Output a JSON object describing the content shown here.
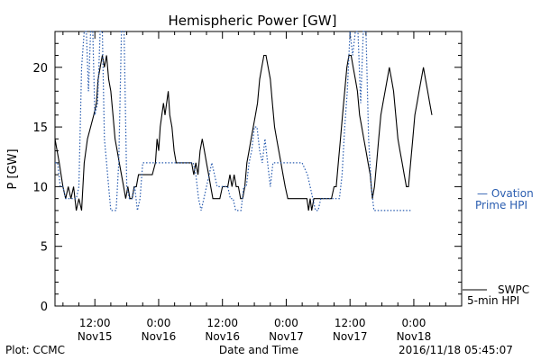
{
  "chart_data": {
    "type": "line",
    "title": "Hemispheric Power [GW]",
    "ylabel": "P [GW]",
    "xlabel": "Date and Time",
    "ylim": [
      0,
      23
    ],
    "yticks": [
      0,
      5,
      10,
      15,
      20
    ],
    "x_unit": "hours since 2016-11-15 00:00",
    "xlim": [
      4.5,
      81
    ],
    "xticks": [
      {
        "x": 12,
        "top": "12:00",
        "bottom": "Nov15"
      },
      {
        "x": 24,
        "top": "0:00",
        "bottom": "Nov16"
      },
      {
        "x": 36,
        "top": "12:00",
        "bottom": "Nov16"
      },
      {
        "x": 48,
        "top": "0:00",
        "bottom": "Nov17"
      },
      {
        "x": 60,
        "top": "12:00",
        "bottom": "Nov17"
      },
      {
        "x": 72,
        "top": "0:00",
        "bottom": "Nov18"
      }
    ],
    "series": [
      {
        "name": "SWPC 5-min HPI",
        "color": "#000000",
        "style": "solid",
        "points": [
          [
            4.5,
            14
          ],
          [
            5.3,
            12
          ],
          [
            6.0,
            10
          ],
          [
            6.5,
            9
          ],
          [
            7.0,
            10
          ],
          [
            7.5,
            9
          ],
          [
            8.0,
            10
          ],
          [
            8.5,
            8
          ],
          [
            9.0,
            9
          ],
          [
            9.5,
            8
          ],
          [
            10.0,
            12
          ],
          [
            10.6,
            14
          ],
          [
            11.2,
            15
          ],
          [
            11.8,
            16
          ],
          [
            12.3,
            17
          ],
          [
            12.6,
            19
          ],
          [
            13.0,
            20
          ],
          [
            13.4,
            21
          ],
          [
            13.8,
            20
          ],
          [
            14.2,
            21
          ],
          [
            14.6,
            19
          ],
          [
            15.0,
            18
          ],
          [
            15.4,
            16
          ],
          [
            15.8,
            14
          ],
          [
            16.2,
            13
          ],
          [
            16.6,
            12
          ],
          [
            17.0,
            11
          ],
          [
            17.4,
            10
          ],
          [
            17.8,
            9
          ],
          [
            18.2,
            10
          ],
          [
            18.6,
            9
          ],
          [
            19.0,
            9
          ],
          [
            19.4,
            10
          ],
          [
            19.8,
            10
          ],
          [
            20.2,
            11
          ],
          [
            20.6,
            11
          ],
          [
            21.0,
            11
          ],
          [
            21.6,
            11
          ],
          [
            22.2,
            11
          ],
          [
            22.8,
            11
          ],
          [
            23.4,
            12
          ],
          [
            23.7,
            14
          ],
          [
            24.0,
            13
          ],
          [
            24.3,
            15
          ],
          [
            24.6,
            16
          ],
          [
            24.9,
            17
          ],
          [
            25.2,
            16
          ],
          [
            25.5,
            17
          ],
          [
            25.8,
            18
          ],
          [
            26.1,
            16
          ],
          [
            26.5,
            15
          ],
          [
            26.9,
            13
          ],
          [
            27.3,
            12
          ],
          [
            27.7,
            12
          ],
          [
            28.1,
            12
          ],
          [
            28.6,
            12
          ],
          [
            29.1,
            12
          ],
          [
            29.6,
            12
          ],
          [
            30.2,
            12
          ],
          [
            30.6,
            11
          ],
          [
            31.0,
            12
          ],
          [
            31.4,
            11
          ],
          [
            31.8,
            13
          ],
          [
            32.2,
            14
          ],
          [
            32.6,
            13
          ],
          [
            33.0,
            12
          ],
          [
            33.4,
            11
          ],
          [
            33.8,
            10
          ],
          [
            34.2,
            9
          ],
          [
            34.6,
            9
          ],
          [
            35.0,
            9
          ],
          [
            35.5,
            9
          ],
          [
            36.0,
            10
          ],
          [
            36.5,
            10
          ],
          [
            37.0,
            10
          ],
          [
            37.4,
            11
          ],
          [
            37.8,
            10
          ],
          [
            38.2,
            11
          ],
          [
            38.6,
            10
          ],
          [
            39.0,
            10
          ],
          [
            39.4,
            9
          ],
          [
            39.8,
            9
          ],
          [
            40.2,
            10
          ],
          [
            40.6,
            12
          ],
          [
            41.0,
            13
          ],
          [
            41.4,
            14
          ],
          [
            41.8,
            15
          ],
          [
            42.2,
            16
          ],
          [
            42.6,
            17
          ],
          [
            43.0,
            19
          ],
          [
            43.4,
            20
          ],
          [
            43.8,
            21
          ],
          [
            44.2,
            21
          ],
          [
            44.6,
            20
          ],
          [
            45.0,
            19
          ],
          [
            45.4,
            17
          ],
          [
            45.8,
            15
          ],
          [
            46.2,
            14
          ],
          [
            46.6,
            13
          ],
          [
            47.0,
            12
          ],
          [
            47.4,
            11
          ],
          [
            47.8,
            10
          ],
          [
            48.3,
            9
          ],
          [
            48.9,
            9
          ],
          [
            49.5,
            9
          ],
          [
            50.1,
            9
          ],
          [
            50.7,
            9
          ],
          [
            51.3,
            9
          ],
          [
            51.9,
            9
          ],
          [
            52.2,
            8
          ],
          [
            52.5,
            9
          ],
          [
            52.8,
            8
          ],
          [
            53.2,
            9
          ],
          [
            53.6,
            9
          ],
          [
            54.0,
            9
          ],
          [
            54.5,
            9
          ],
          [
            55.0,
            9
          ],
          [
            55.5,
            9
          ],
          [
            56.0,
            9
          ],
          [
            56.5,
            9
          ],
          [
            57.0,
            10
          ],
          [
            57.4,
            10
          ],
          [
            57.8,
            12
          ],
          [
            58.2,
            14
          ],
          [
            58.6,
            16
          ],
          [
            59.0,
            18
          ],
          [
            59.4,
            20
          ],
          [
            59.8,
            21
          ],
          [
            60.2,
            21
          ],
          [
            60.6,
            20
          ],
          [
            61.0,
            19
          ],
          [
            61.4,
            18
          ],
          [
            61.8,
            16
          ],
          [
            62.2,
            15
          ],
          [
            62.6,
            14
          ],
          [
            63.0,
            13
          ],
          [
            63.4,
            12
          ],
          [
            63.8,
            11
          ],
          [
            64.2,
            9
          ],
          [
            64.6,
            10
          ],
          [
            65.0,
            12
          ],
          [
            65.4,
            14
          ],
          [
            65.8,
            16
          ],
          [
            66.2,
            17
          ],
          [
            66.6,
            18
          ],
          [
            67.0,
            19
          ],
          [
            67.4,
            20
          ],
          [
            67.8,
            19
          ],
          [
            68.2,
            18
          ],
          [
            68.6,
            16
          ],
          [
            69.0,
            14
          ],
          [
            69.4,
            13
          ],
          [
            69.8,
            12
          ],
          [
            70.2,
            11
          ],
          [
            70.6,
            10
          ],
          [
            71.0,
            10
          ],
          [
            71.4,
            12
          ],
          [
            71.8,
            14
          ],
          [
            72.2,
            16
          ],
          [
            72.6,
            17
          ],
          [
            73.0,
            18
          ],
          [
            73.4,
            19
          ],
          [
            73.8,
            20
          ],
          [
            74.2,
            19
          ],
          [
            74.6,
            18
          ],
          [
            75.0,
            17
          ],
          [
            75.4,
            16
          ]
        ]
      },
      {
        "name": "Ovation Prime HPI",
        "color": "#2a5db0",
        "style": "dotted",
        "points": [
          [
            4.5,
            12
          ],
          [
            5.0,
            12
          ],
          [
            5.5,
            10
          ],
          [
            6.0,
            10
          ],
          [
            6.5,
            9
          ],
          [
            7.0,
            9
          ],
          [
            7.5,
            9
          ],
          [
            8.0,
            9
          ],
          [
            8.5,
            9
          ],
          [
            9.0,
            10
          ],
          [
            9.5,
            20
          ],
          [
            10.0,
            23
          ],
          [
            10.4,
            23
          ],
          [
            10.8,
            18
          ],
          [
            11.2,
            23
          ],
          [
            11.6,
            23
          ],
          [
            12.0,
            16
          ],
          [
            12.5,
            17
          ],
          [
            13.0,
            23
          ],
          [
            13.4,
            23
          ],
          [
            13.8,
            14
          ],
          [
            14.2,
            12
          ],
          [
            14.6,
            10
          ],
          [
            15.0,
            8
          ],
          [
            15.5,
            8
          ],
          [
            16.0,
            8
          ],
          [
            16.5,
            12
          ],
          [
            17.0,
            23
          ],
          [
            17.5,
            23
          ],
          [
            18.0,
            10
          ],
          [
            18.5,
            9
          ],
          [
            19.0,
            9
          ],
          [
            19.5,
            10
          ],
          [
            20.0,
            8
          ],
          [
            20.5,
            9
          ],
          [
            21.0,
            12
          ],
          [
            21.5,
            12
          ],
          [
            22.0,
            12
          ],
          [
            23.0,
            12
          ],
          [
            24.0,
            12
          ],
          [
            25.0,
            12
          ],
          [
            26.0,
            12
          ],
          [
            27.0,
            12
          ],
          [
            28.0,
            12
          ],
          [
            29.0,
            12
          ],
          [
            30.0,
            12
          ],
          [
            30.5,
            12
          ],
          [
            31.0,
            11
          ],
          [
            31.5,
            9
          ],
          [
            32.0,
            8
          ],
          [
            32.5,
            9
          ],
          [
            33.0,
            10
          ],
          [
            33.5,
            11
          ],
          [
            34.0,
            12
          ],
          [
            34.5,
            11
          ],
          [
            35.0,
            10
          ],
          [
            35.5,
            10
          ],
          [
            36.0,
            10
          ],
          [
            37.0,
            10
          ],
          [
            37.5,
            9
          ],
          [
            38.0,
            9
          ],
          [
            38.5,
            8
          ],
          [
            39.0,
            8
          ],
          [
            39.5,
            8
          ],
          [
            40.0,
            10
          ],
          [
            40.5,
            10
          ],
          [
            41.0,
            12
          ],
          [
            41.5,
            13
          ],
          [
            42.0,
            15
          ],
          [
            42.5,
            15
          ],
          [
            43.0,
            13
          ],
          [
            43.5,
            12
          ],
          [
            44.0,
            14
          ],
          [
            44.5,
            12
          ],
          [
            45.0,
            10
          ],
          [
            45.5,
            12
          ],
          [
            46.0,
            12
          ],
          [
            47.0,
            12
          ],
          [
            48.0,
            12
          ],
          [
            49.0,
            12
          ],
          [
            50.0,
            12
          ],
          [
            51.0,
            12
          ],
          [
            52.0,
            11
          ],
          [
            52.5,
            10
          ],
          [
            53.0,
            9
          ],
          [
            53.5,
            8
          ],
          [
            54.0,
            8
          ],
          [
            54.5,
            9
          ],
          [
            55.0,
            9
          ],
          [
            56.0,
            9
          ],
          [
            57.0,
            9
          ],
          [
            58.0,
            9
          ],
          [
            58.5,
            11
          ],
          [
            59.0,
            15
          ],
          [
            59.5,
            18
          ],
          [
            60.0,
            23
          ],
          [
            60.5,
            21
          ],
          [
            61.0,
            23
          ],
          [
            61.5,
            23
          ],
          [
            62.0,
            17
          ],
          [
            62.5,
            23
          ],
          [
            63.0,
            23
          ],
          [
            63.5,
            14
          ],
          [
            64.0,
            10
          ],
          [
            64.5,
            8
          ],
          [
            65.0,
            8
          ],
          [
            66.0,
            8
          ],
          [
            67.0,
            8
          ],
          [
            68.0,
            8
          ],
          [
            69.0,
            8
          ],
          [
            70.0,
            8
          ],
          [
            71.0,
            8
          ],
          [
            71.5,
            8
          ]
        ]
      }
    ],
    "legend": [
      {
        "series": "SWPC 5-min HPI",
        "line1": "SWPC",
        "line2": "5-min HPI"
      },
      {
        "series": "Ovation Prime HPI",
        "line1": "— Ovation",
        "line2": "Prime HPI"
      }
    ],
    "grid": false
  },
  "footer": {
    "left": "Plot: CCMC",
    "right": "2016/11/18 05:45:07"
  }
}
